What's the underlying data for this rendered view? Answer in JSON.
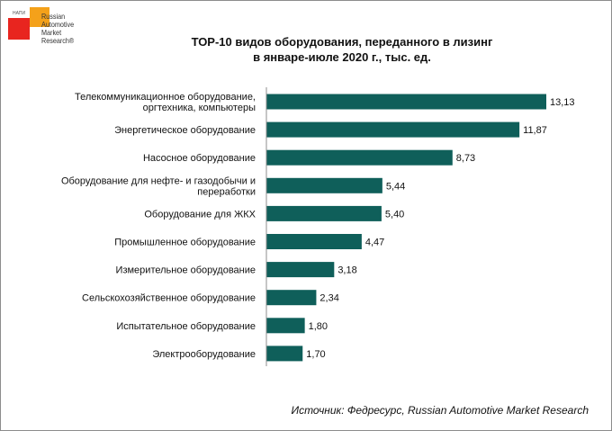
{
  "logo": {
    "small_text": "НАПИ",
    "lines": [
      "Russian",
      "Automotive",
      "Market",
      "Research®"
    ]
  },
  "source": "Источник: Федресурс, Russian Automotive Market Research",
  "colors": {
    "bar": "#0f5f5a",
    "axis": "#8c8c8c"
  },
  "chart_data": {
    "type": "bar",
    "orientation": "horizontal",
    "title": [
      "ТОР-10 видов оборудования, переданного в лизинг",
      "в январе-июле 2020 г., тыс. ед."
    ],
    "categories": [
      [
        "Телекоммуникационное оборудование,",
        "оргтехника, компьютеры"
      ],
      [
        "Энергетическое оборудование"
      ],
      [
        "Насосное оборудование"
      ],
      [
        "Оборудование для нефте- и газодобычи и",
        "переработки"
      ],
      [
        "Оборудование для ЖКХ"
      ],
      [
        "Промышленное оборудование"
      ],
      [
        "Измерительное оборудование"
      ],
      [
        "Сельскохозяйственное оборудование"
      ],
      [
        "Испытательное оборудование"
      ],
      [
        "Электрооборудование"
      ]
    ],
    "values": [
      13.13,
      11.87,
      8.73,
      5.44,
      5.4,
      4.47,
      3.18,
      2.34,
      1.8,
      1.7
    ],
    "value_labels": [
      "13,13",
      "11,87",
      "8,73",
      "5,44",
      "5,40",
      "4,47",
      "3,18",
      "2,34",
      "1,80",
      "1,70"
    ],
    "xlim": [
      0,
      13.13
    ],
    "grid": false,
    "legend": "none"
  }
}
